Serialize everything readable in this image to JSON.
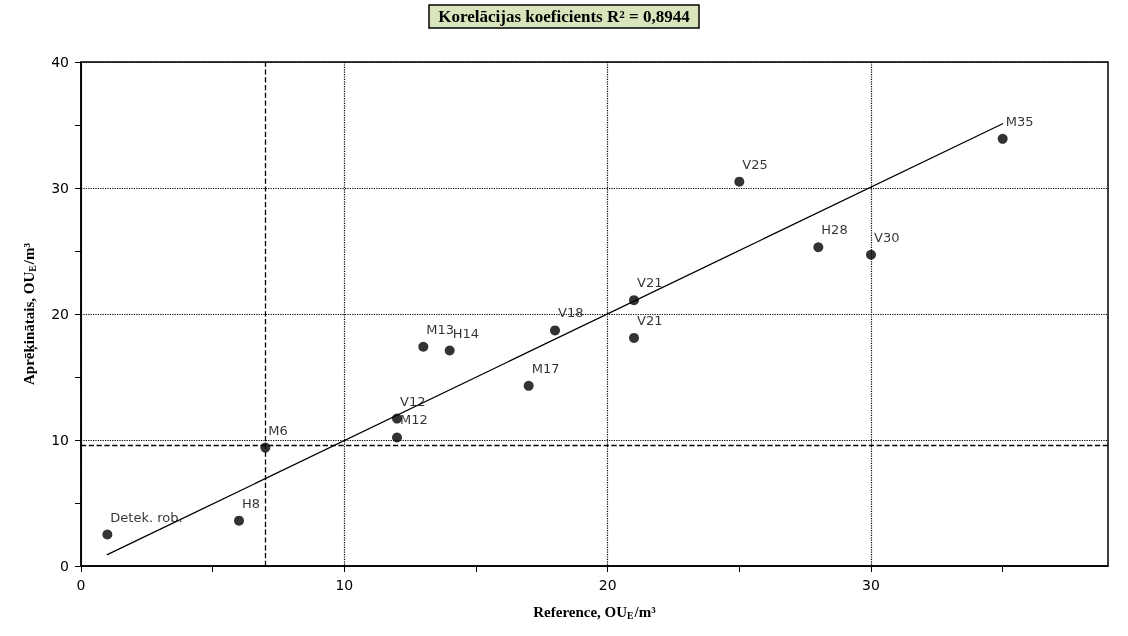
{
  "chart_data": {
    "type": "scatter",
    "title": "Korelācijas koeficients R$^{2}$ = 0,8944",
    "xlabel": "Reference, OU$_{E}$/m³",
    "ylabel": "Aprēķinātais, OU$_{E}$/m³",
    "xlim": [
      0,
      39
    ],
    "ylim": [
      0,
      40
    ],
    "xticks": [
      0,
      {
        "value": 5,
        "label": null
      },
      10,
      {
        "value": 15,
        "label": null
      },
      20,
      {
        "value": 25,
        "label": null
      },
      30,
      {
        "value": 35,
        "label": null
      }
    ],
    "yticks": [
      0,
      {
        "value": 5,
        "label": null
      },
      10,
      {
        "value": 15,
        "label": null
      },
      20,
      {
        "value": 25,
        "label": null
      },
      30,
      {
        "value": 35,
        "label": null
      },
      40
    ],
    "grid": true,
    "marker": "circle",
    "series": [
      {
        "type": "scatter",
        "color": "#000000",
        "x": [
          1,
          6,
          7,
          12,
          12,
          13,
          14,
          17,
          18,
          21,
          21,
          25,
          28,
          30,
          35
        ],
        "values": [
          2.5,
          3.6,
          9.4,
          11.7,
          10.2,
          17.4,
          17.1,
          14.3,
          18.7,
          21.1,
          18.1,
          30.5,
          25.3,
          24.7,
          33.9
        ]
      },
      {
        "type": "line",
        "color": "#000000",
        "marker": "none",
        "line_style": "solid",
        "x": [
          1,
          35
        ],
        "values": [
          0.9,
          35.1
        ]
      }
    ],
    "ref_lines": [
      {
        "axis": "x",
        "value": 7,
        "label": null,
        "color": "#000000",
        "line_style": "dashed"
      },
      {
        "axis": "y",
        "value": 9.6,
        "label": null,
        "color": "#000000",
        "line_style": "dashed"
      }
    ],
    "annotations": [
      {
        "text": "Detek. rob.",
        "x": 1,
        "y": 2.5
      },
      {
        "text": "H8",
        "x": 6,
        "y": 3.6
      },
      {
        "text": "M6",
        "x": 7,
        "y": 9.4
      },
      {
        "text": "V12",
        "x": 12,
        "y": 11.7
      },
      {
        "text": "M12",
        "x": 12,
        "y": 10.2
      },
      {
        "text": "M13",
        "x": 13,
        "y": 17.4
      },
      {
        "text": "H14",
        "x": 14,
        "y": 17.1
      },
      {
        "text": "M17",
        "x": 17,
        "y": 14.3
      },
      {
        "text": "V18",
        "x": 18,
        "y": 18.7
      },
      {
        "text": "V21",
        "x": 21,
        "y": 21.1
      },
      {
        "text": "V21",
        "x": 21,
        "y": 18.1
      },
      {
        "text": "V25",
        "x": 25,
        "y": 30.5
      },
      {
        "text": "H28",
        "x": 28,
        "y": 25.3
      },
      {
        "text": "V30",
        "x": 30,
        "y": 24.7
      },
      {
        "text": "M35",
        "x": 35,
        "y": 33.9
      }
    ]
  }
}
